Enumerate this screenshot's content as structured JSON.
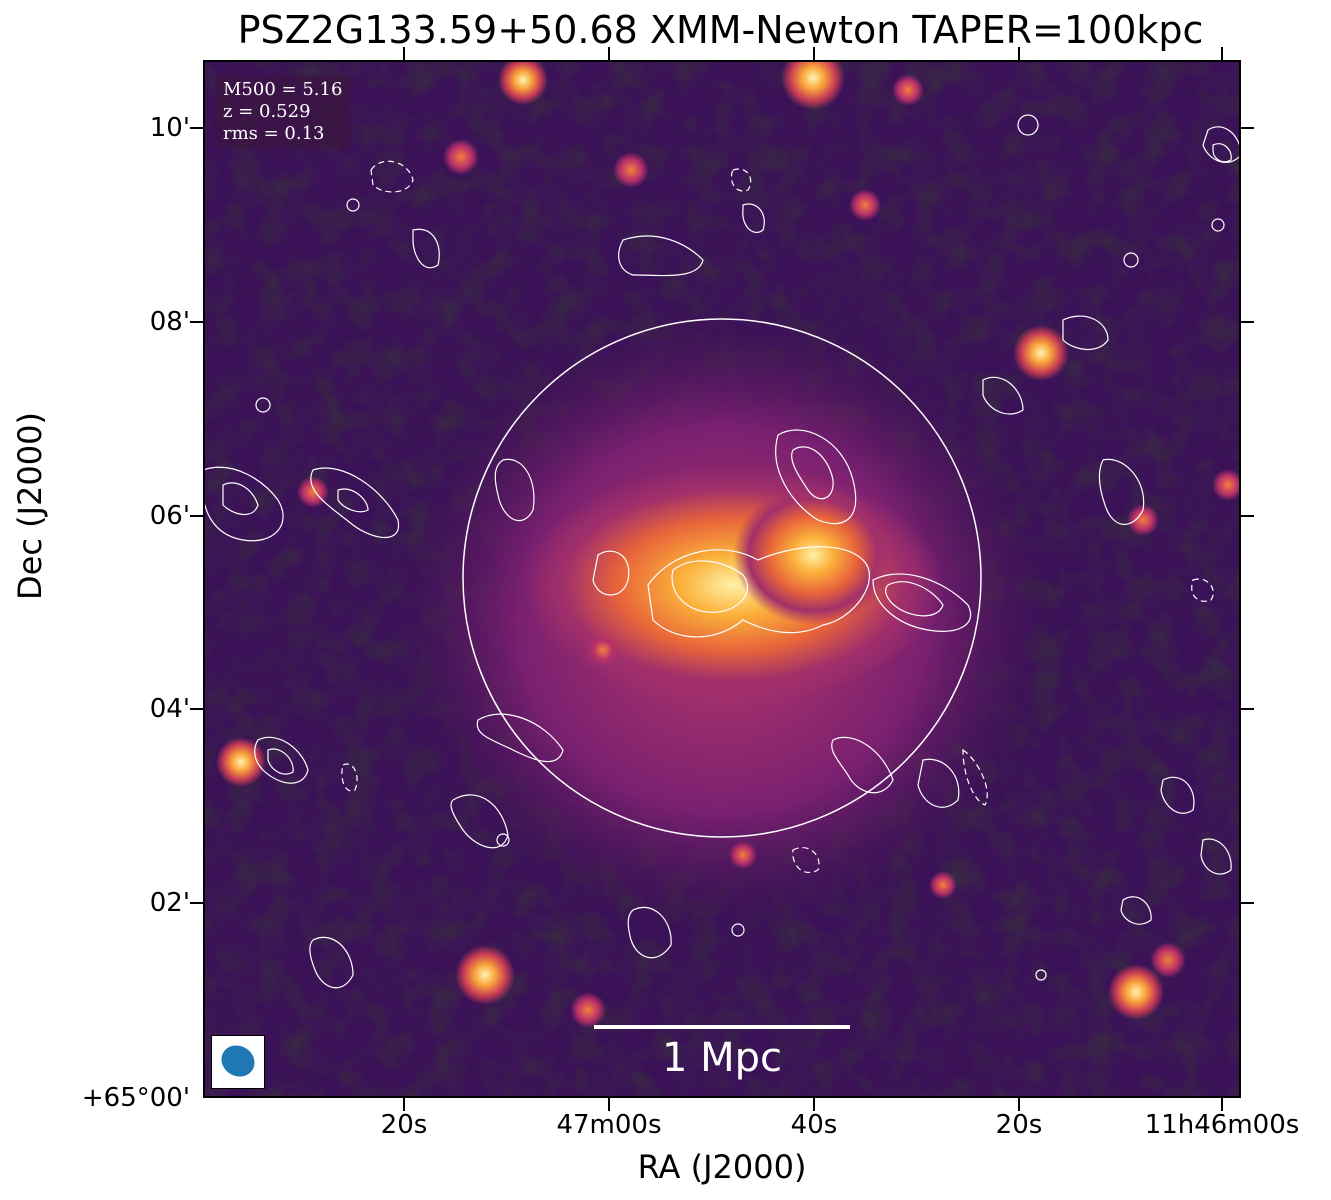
{
  "title": "PSZ2G133.59+50.68 XMM-Newton TAPER=100kpc",
  "axes": {
    "xlabel": "RA (J2000)",
    "ylabel": "Dec (J2000)",
    "yticks": [
      "10'",
      "08'",
      "06'",
      "04'",
      "02'",
      "+65°00'"
    ],
    "xticks": [
      "20s",
      "47m00s",
      "40s",
      "20s",
      "11h46m00s"
    ]
  },
  "info": {
    "m500": "M500 = 5.16",
    "z": "z = 0.529",
    "rms": "rms = 0.13"
  },
  "scalebar": {
    "label": "1 Mpc"
  },
  "colors": {
    "colormap": "inferno",
    "contour": "#ffffff",
    "beam": "#1f77b4"
  },
  "icons": {
    "beam": "beam-ellipse-icon"
  }
}
